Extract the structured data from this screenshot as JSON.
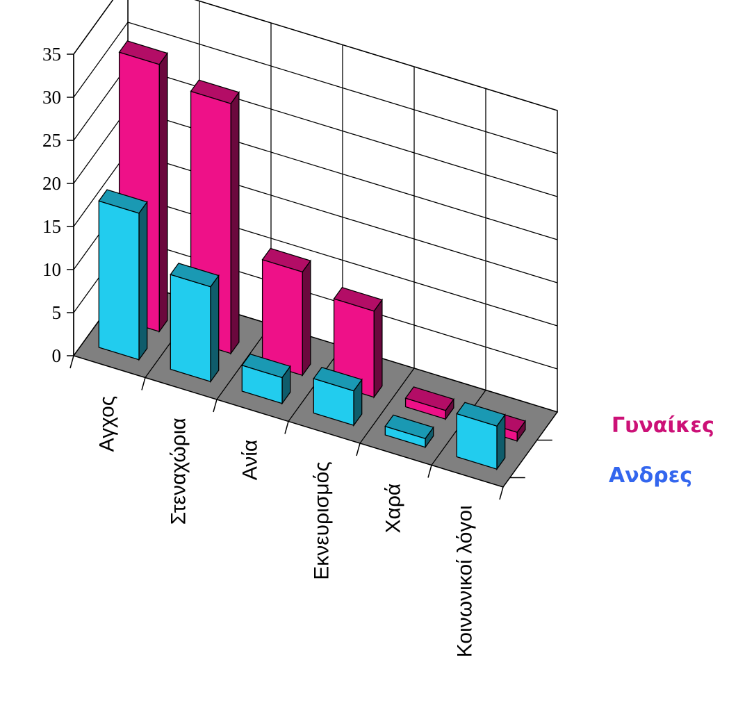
{
  "chart_data": {
    "type": "bar",
    "subtype": "3d-clustered-depth",
    "categories": [
      "Αγχος",
      "Στεναχώρια",
      "Ανία",
      "Εκνευρισμός",
      "Χαρά",
      "Κοινωνικοί λόγοι"
    ],
    "series": [
      {
        "name": "Γυναίκες",
        "values": [
          31,
          29,
          12,
          10,
          1,
          1
        ],
        "color": "#ee1188"
      },
      {
        "name": "Ανδρες",
        "values": [
          17,
          11,
          3,
          4,
          1,
          5
        ],
        "color": "#22ccee"
      }
    ],
    "ylim": [
      0,
      35
    ],
    "yticks": [
      "0",
      "5",
      "10",
      "15",
      "20",
      "25",
      "30",
      "35"
    ],
    "grid": true,
    "floor_color": "#808080",
    "legend_position": "right"
  }
}
